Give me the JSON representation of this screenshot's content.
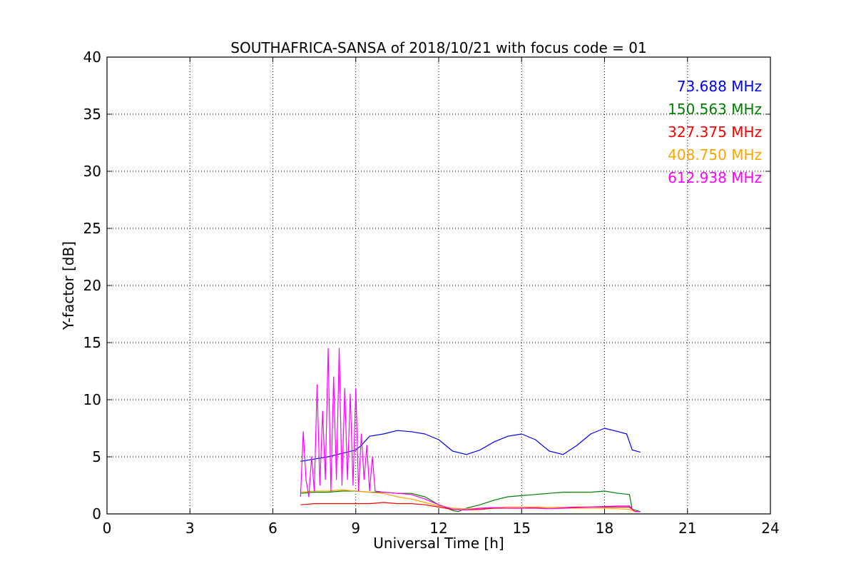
{
  "chart_data": {
    "type": "line",
    "title": "SOUTHAFRICA-SANSA of 2018/10/21 with focus code = 01",
    "xlabel": "Universal Time [h]",
    "ylabel": "Y-factor [dB]",
    "xlim": [
      0,
      24
    ],
    "ylim": [
      0,
      40
    ],
    "xticks": [
      0,
      3,
      6,
      9,
      12,
      15,
      18,
      21,
      24
    ],
    "yticks": [
      0,
      5,
      10,
      15,
      20,
      25,
      30,
      35,
      40
    ],
    "grid": true,
    "legend_position": "top-right",
    "series": [
      {
        "name": "73.688 MHz",
        "color": "#0000ff",
        "x": [
          7.0,
          7.5,
          8.0,
          8.5,
          9.0,
          9.2,
          9.5,
          10.0,
          10.5,
          11.0,
          11.5,
          12.0,
          12.5,
          13.0,
          13.5,
          14.0,
          14.5,
          15.0,
          15.5,
          16.0,
          16.5,
          17.0,
          17.5,
          18.0,
          18.5,
          18.8,
          19.0,
          19.3
        ],
        "y": [
          4.6,
          4.8,
          5.0,
          5.3,
          5.6,
          6.0,
          6.8,
          7.0,
          7.3,
          7.2,
          7.0,
          6.5,
          5.5,
          5.2,
          5.6,
          6.3,
          6.8,
          7.0,
          6.5,
          5.5,
          5.2,
          6.0,
          7.0,
          7.5,
          7.2,
          7.0,
          5.6,
          5.4
        ]
      },
      {
        "name": "150.563 MHz",
        "color": "#008000",
        "x": [
          7.0,
          7.5,
          8.0,
          8.5,
          9.0,
          9.5,
          10.0,
          10.5,
          11.0,
          11.5,
          12.0,
          12.5,
          12.7,
          13.0,
          13.5,
          14.0,
          14.5,
          15.0,
          15.5,
          16.0,
          16.5,
          17.0,
          17.5,
          18.0,
          18.5,
          18.9,
          19.0,
          19.3
        ],
        "y": [
          1.8,
          1.9,
          1.9,
          2.0,
          2.0,
          1.9,
          1.9,
          1.8,
          1.8,
          1.5,
          0.8,
          0.3,
          0.2,
          0.5,
          0.8,
          1.2,
          1.5,
          1.6,
          1.7,
          1.8,
          1.9,
          1.9,
          1.9,
          2.0,
          1.8,
          1.7,
          0.4,
          0.2
        ]
      },
      {
        "name": "327.375 MHz",
        "color": "#ff0000",
        "x": [
          7.0,
          7.5,
          8.0,
          8.5,
          9.0,
          9.5,
          10.0,
          10.5,
          11.0,
          11.5,
          12.0,
          12.5,
          13.0,
          13.5,
          14.0,
          14.5,
          15.0,
          15.5,
          16.0,
          16.5,
          17.0,
          17.5,
          18.0,
          18.5,
          18.9,
          19.1,
          19.3
        ],
        "y": [
          0.8,
          0.9,
          0.9,
          0.9,
          0.9,
          0.9,
          1.0,
          0.9,
          0.9,
          0.8,
          0.6,
          0.4,
          0.35,
          0.4,
          0.5,
          0.5,
          0.5,
          0.55,
          0.55,
          0.55,
          0.6,
          0.6,
          0.6,
          0.6,
          0.6,
          0.2,
          0.2
        ]
      },
      {
        "name": "408.750 MHz",
        "color": "#ffa500",
        "x": [
          7.0,
          7.5,
          8.0,
          8.5,
          9.0,
          9.5,
          10.0,
          10.5,
          11.0,
          11.5,
          12.0,
          12.5,
          13.0,
          13.5,
          14.0,
          14.5,
          15.0,
          15.5,
          16.0,
          16.5,
          17.0,
          17.5,
          18.0,
          18.5,
          18.9,
          19.1,
          19.3
        ],
        "y": [
          1.9,
          2.0,
          2.0,
          2.1,
          2.0,
          1.9,
          1.8,
          1.5,
          1.3,
          1.0,
          0.7,
          0.5,
          0.45,
          0.5,
          0.55,
          0.6,
          0.6,
          0.6,
          0.55,
          0.5,
          0.5,
          0.5,
          0.5,
          0.45,
          0.4,
          0.2,
          0.2
        ]
      },
      {
        "name": "612.938 MHz",
        "color": "#ff00ff",
        "x": [
          7.0,
          7.1,
          7.2,
          7.3,
          7.4,
          7.5,
          7.6,
          7.7,
          7.8,
          7.9,
          8.0,
          8.1,
          8.2,
          8.3,
          8.4,
          8.5,
          8.6,
          8.7,
          8.8,
          8.9,
          9.0,
          9.1,
          9.2,
          9.3,
          9.4,
          9.5,
          9.6,
          9.7,
          10.0,
          10.5,
          11.0,
          11.5,
          12.0,
          12.5,
          13.0,
          13.5,
          14.0,
          14.5,
          15.0,
          15.5,
          16.0,
          16.5,
          17.0,
          17.5,
          18.0,
          18.5,
          18.9,
          19.1,
          19.3
        ],
        "y": [
          1.5,
          7.2,
          3.0,
          1.5,
          5.0,
          2.0,
          11.3,
          2.5,
          9.0,
          3.0,
          14.5,
          2.0,
          12.0,
          3.0,
          14.5,
          2.5,
          11.0,
          3.0,
          10.5,
          2.5,
          11.0,
          2.0,
          7.0,
          3.0,
          6.0,
          2.0,
          5.0,
          2.0,
          1.9,
          1.8,
          1.7,
          1.3,
          0.8,
          0.4,
          0.35,
          0.5,
          0.55,
          0.5,
          0.5,
          0.5,
          0.45,
          0.5,
          0.55,
          0.6,
          0.65,
          0.7,
          0.7,
          0.2,
          0.2
        ]
      }
    ]
  }
}
